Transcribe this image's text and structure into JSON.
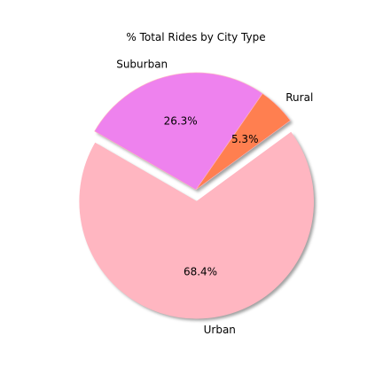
{
  "chart_data": {
    "type": "pie",
    "title": "% Total Rides by City Type",
    "slices": [
      {
        "label": "Urban",
        "value": 68.4,
        "pct_label": "68.4%",
        "color": "#FFB6C1",
        "explode": true
      },
      {
        "label": "Rural",
        "value": 5.3,
        "pct_label": "5.3%",
        "color": "#FF7F50",
        "explode": false
      },
      {
        "label": "Suburban",
        "value": 26.3,
        "pct_label": "26.3%",
        "color": "#EE82EE",
        "explode": false
      }
    ],
    "shadow": true,
    "edge_color": "#FFB6C1"
  }
}
